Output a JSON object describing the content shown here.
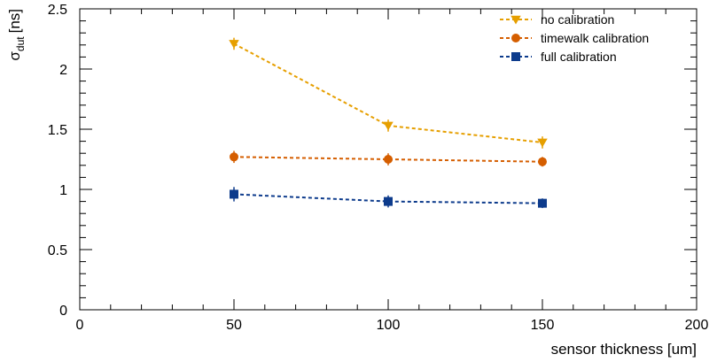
{
  "chart_data": {
    "type": "line",
    "xlabel": "sensor thickness [um]",
    "ylabel_main": "σ",
    "ylabel_sub": "dut",
    "ylabel_unit": "[ns]",
    "xlim": [
      0,
      200
    ],
    "ylim": [
      0,
      2.5
    ],
    "x_ticks": [
      "0",
      "50",
      "100",
      "150",
      "200"
    ],
    "y_ticks": [
      "0",
      "0.5",
      "1",
      "1.5",
      "2",
      "2.5"
    ],
    "grid": false,
    "legend_position": "top-right",
    "x": [
      50,
      100,
      150
    ],
    "series": [
      {
        "name": "no calibration",
        "values": [
          2.21,
          1.53,
          1.39
        ],
        "errors": [
          0.05,
          0.05,
          0.05
        ],
        "color": "#e69f00",
        "marker": "triangle-down"
      },
      {
        "name": "timewalk calibration",
        "values": [
          1.27,
          1.25,
          1.23
        ],
        "errors": [
          0.05,
          0.05,
          0.04
        ],
        "color": "#d55e00",
        "marker": "circle"
      },
      {
        "name": "full calibration",
        "values": [
          0.96,
          0.9,
          0.885
        ],
        "errors": [
          0.06,
          0.05,
          0.04
        ],
        "color": "#0d3b8c",
        "marker": "square"
      }
    ]
  }
}
